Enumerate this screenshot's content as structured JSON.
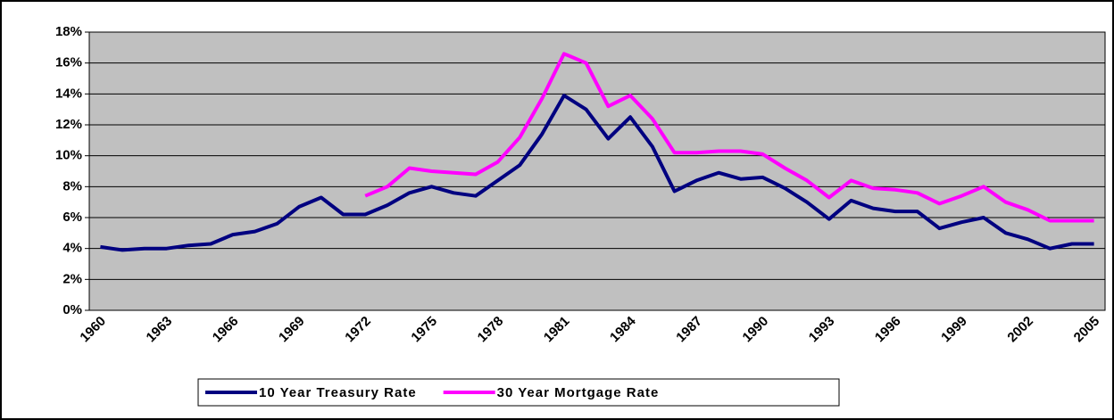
{
  "chart_data": {
    "type": "line",
    "categories": [
      "1960",
      null,
      null,
      "1963",
      null,
      null,
      "1966",
      null,
      null,
      "1969",
      null,
      null,
      "1972",
      null,
      null,
      "1975",
      null,
      null,
      "1978",
      null,
      null,
      "1981",
      null,
      null,
      "1984",
      null,
      null,
      "1987",
      null,
      null,
      "1990",
      null,
      null,
      "1993",
      null,
      null,
      "1996",
      null,
      null,
      "1999",
      null,
      null,
      "2002",
      null,
      null,
      "2005"
    ],
    "series": [
      {
        "name": "10 Year Treasury Rate",
        "color": "#000080",
        "values": [
          4.1,
          3.9,
          4.0,
          4.0,
          4.2,
          4.3,
          4.9,
          5.1,
          5.6,
          6.7,
          7.3,
          6.2,
          6.2,
          6.8,
          7.6,
          8.0,
          7.6,
          7.4,
          8.4,
          9.4,
          11.4,
          13.9,
          13.0,
          11.1,
          12.5,
          10.6,
          7.7,
          8.4,
          8.9,
          8.5,
          8.6,
          7.9,
          7.0,
          5.9,
          7.1,
          6.6,
          6.4,
          6.4,
          5.3,
          5.7,
          6.0,
          5.0,
          4.6,
          4.0,
          4.3,
          4.3
        ]
      },
      {
        "name": "30 Year Mortgage Rate",
        "color": "#ff00ff",
        "values": [
          null,
          null,
          null,
          null,
          null,
          null,
          null,
          null,
          null,
          null,
          null,
          null,
          7.4,
          8.0,
          9.2,
          9.0,
          8.9,
          8.8,
          9.6,
          11.2,
          13.7,
          16.6,
          16.0,
          13.2,
          13.9,
          12.4,
          10.2,
          10.2,
          10.3,
          10.3,
          10.1,
          9.2,
          8.4,
          7.3,
          8.4,
          7.9,
          7.8,
          7.6,
          6.9,
          7.4,
          8.0,
          7.0,
          6.5,
          5.8,
          5.8,
          5.8
        ]
      }
    ],
    "ylim": [
      0,
      18
    ],
    "yticks": [
      {
        "value": 0,
        "label": "0%"
      },
      {
        "value": 2,
        "label": "2%"
      },
      {
        "value": 4,
        "label": "4%"
      },
      {
        "value": 6,
        "label": "6%"
      },
      {
        "value": 8,
        "label": "8%"
      },
      {
        "value": 10,
        "label": "10%"
      },
      {
        "value": 12,
        "label": "12%"
      },
      {
        "value": 14,
        "label": "14%"
      },
      {
        "value": 16,
        "label": "16%"
      },
      {
        "value": 18,
        "label": "18%"
      }
    ],
    "grid": true,
    "plot_background": "#c0c0c0",
    "legend": "bottom"
  }
}
